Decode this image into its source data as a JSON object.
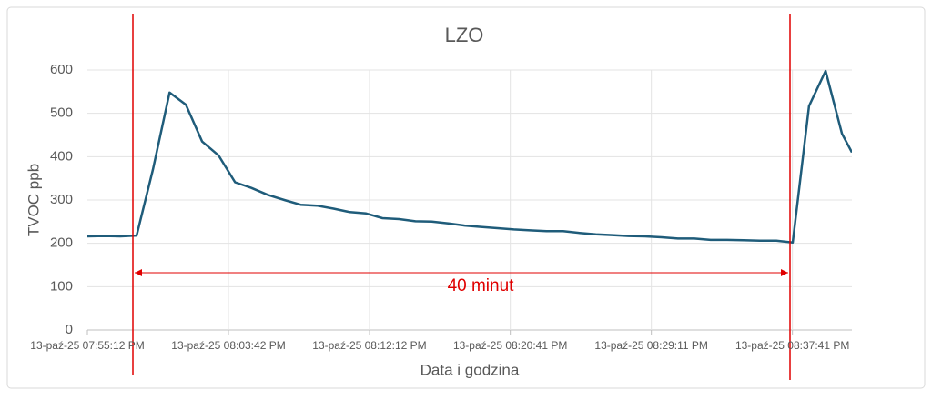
{
  "chart_data": {
    "type": "line",
    "title": "LZO",
    "ylabel": "TVOC ppb",
    "xlabel": "Data i godzina",
    "annotation": "40 minut",
    "x": [
      "13-paź-25 07:55:12 PM",
      "13-paź-25 07:56:11 PM",
      "13-paź-25 07:57:11 PM",
      "13-paź-25 07:58:10 PM",
      "13-paź-25 07:59:09 PM",
      "13-paź-25 08:00:09 PM",
      "13-paź-25 08:01:08 PM",
      "13-paź-25 08:02:07 PM",
      "13-paź-25 08:03:06 PM",
      "13-paź-25 08:04:06 PM",
      "13-paź-25 08:05:05 PM",
      "13-paź-25 08:06:04 PM",
      "13-paź-25 08:07:04 PM",
      "13-paź-25 08:08:03 PM",
      "13-paź-25 08:09:02 PM",
      "13-paź-25 08:10:02 PM",
      "13-paź-25 08:11:01 PM",
      "13-paź-25 08:12:00 PM",
      "13-paź-25 08:12:59 PM",
      "13-paź-25 08:13:59 PM",
      "13-paź-25 08:14:58 PM",
      "13-paź-25 08:15:57 PM",
      "13-paź-25 08:16:57 PM",
      "13-paź-25 08:17:56 PM",
      "13-paź-25 08:18:55 PM",
      "13-paź-25 08:19:55 PM",
      "13-paź-25 08:20:54 PM",
      "13-paź-25 08:21:53 PM",
      "13-paź-25 08:22:52 PM",
      "13-paź-25 08:23:52 PM",
      "13-paź-25 08:24:51 PM",
      "13-paź-25 08:25:50 PM",
      "13-paź-25 08:26:50 PM",
      "13-paź-25 08:27:49 PM",
      "13-paź-25 08:28:48 PM",
      "13-paź-25 08:29:48 PM",
      "13-paź-25 08:30:47 PM",
      "13-paź-25 08:31:46 PM",
      "13-paź-25 08:32:45 PM",
      "13-paź-25 08:33:45 PM",
      "13-paź-25 08:34:44 PM",
      "13-paź-25 08:35:43 PM",
      "13-paź-25 08:36:43 PM",
      "13-paź-25 08:37:42 PM",
      "13-paź-25 08:38:41 PM",
      "13-paź-25 08:39:41 PM",
      "13-paź-25 08:40:40 PM",
      "13-paź-25 08:41:16 PM"
    ],
    "series": [
      {
        "name": "TVOC",
        "color": "#1f5c7a",
        "values": [
          216,
          217,
          216,
          218,
          370,
          548,
          520,
          435,
          403,
          341,
          328,
          312,
          300,
          289,
          287,
          280,
          272,
          269,
          258,
          256,
          251,
          250,
          246,
          241,
          238,
          235,
          232,
          230,
          228,
          228,
          224,
          221,
          219,
          217,
          216,
          214,
          211,
          211,
          208,
          208,
          207,
          206,
          206,
          202,
          517,
          598,
          453,
          410
        ]
      }
    ],
    "xlim": [
      "13-paź-25 07:55:12 PM",
      "13-paź-25 08:41:16 PM"
    ],
    "xticks": [
      "13-paź-25 07:55:12 PM",
      "13-paź-25 08:03:42 PM",
      "13-paź-25 08:12:12 PM",
      "13-paź-25 08:20:41 PM",
      "13-paź-25 08:29:11 PM",
      "13-paź-25 08:37:41 PM"
    ],
    "ylim": [
      0,
      600
    ],
    "yticks": [
      0,
      100,
      200,
      300,
      400,
      500,
      600
    ],
    "grid": true
  }
}
